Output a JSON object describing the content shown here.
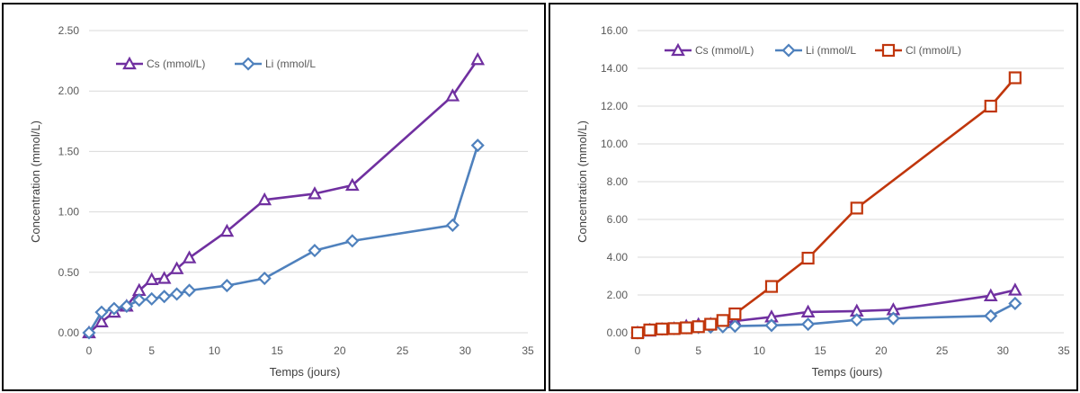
{
  "chart_data": [
    {
      "type": "line",
      "title": "",
      "xlabel": "Temps (jours)",
      "ylabel": "Concentration (mmol/L)",
      "xlim": [
        0,
        35
      ],
      "ylim": [
        0,
        2.5
      ],
      "x_ticks": [
        0,
        5,
        10,
        15,
        20,
        25,
        30,
        35
      ],
      "x_tick_labels": [
        "0",
        "5",
        "10",
        "15",
        "20",
        "25",
        "30",
        "35"
      ],
      "y_ticks": [
        0,
        0.5,
        1,
        1.5,
        2,
        2.5
      ],
      "y_tick_labels": [
        "0.00",
        "0.50",
        "1.00",
        "1.50",
        "2.00",
        "2.50"
      ],
      "grid": "horizontal",
      "legend_position": "top-left",
      "series": [
        {
          "name": "Cs (mmol/L)",
          "color": "#7030a0",
          "marker": "triangle",
          "x": [
            0,
            1,
            2,
            3,
            4,
            5,
            6,
            7,
            8,
            11,
            14,
            18,
            21,
            29,
            31
          ],
          "y": [
            0.0,
            0.09,
            0.17,
            0.22,
            0.35,
            0.44,
            0.45,
            0.53,
            0.62,
            0.84,
            1.1,
            1.15,
            1.22,
            1.96,
            2.26
          ]
        },
        {
          "name": "Li (mmol/L",
          "color": "#4f81bd",
          "marker": "diamond",
          "x": [
            0,
            1,
            2,
            3,
            4,
            5,
            6,
            7,
            8,
            11,
            14,
            18,
            21,
            29,
            31
          ],
          "y": [
            0.0,
            0.17,
            0.2,
            0.22,
            0.27,
            0.28,
            0.3,
            0.32,
            0.35,
            0.39,
            0.45,
            0.68,
            0.76,
            0.89,
            1.55
          ]
        }
      ]
    },
    {
      "type": "line",
      "title": "",
      "xlabel": "Temps (jours)",
      "ylabel": "Concentration (mmol/L)",
      "xlim": [
        0,
        35
      ],
      "ylim": [
        0,
        16
      ],
      "x_ticks": [
        0,
        5,
        10,
        15,
        20,
        25,
        30,
        35
      ],
      "x_tick_labels": [
        "0",
        "5",
        "10",
        "15",
        "20",
        "25",
        "30",
        "35"
      ],
      "y_ticks": [
        0,
        2,
        4,
        6,
        8,
        10,
        12,
        14,
        16
      ],
      "y_tick_labels": [
        "0.00",
        "2.00",
        "4.00",
        "6.00",
        "8.00",
        "10.00",
        "12.00",
        "14.00",
        "16.00"
      ],
      "grid": "horizontal",
      "legend_position": "top-left",
      "series": [
        {
          "name": "Cs (mmol/L)",
          "color": "#7030a0",
          "marker": "triangle",
          "x": [
            0,
            1,
            2,
            3,
            4,
            5,
            6,
            7,
            8,
            11,
            14,
            18,
            21,
            29,
            31
          ],
          "y": [
            0.0,
            0.09,
            0.17,
            0.22,
            0.35,
            0.44,
            0.45,
            0.53,
            0.62,
            0.84,
            1.1,
            1.15,
            1.22,
            1.96,
            2.26
          ]
        },
        {
          "name": "Li (mmol/L",
          "color": "#4f81bd",
          "marker": "diamond",
          "x": [
            0,
            1,
            2,
            3,
            4,
            5,
            6,
            7,
            8,
            11,
            14,
            18,
            21,
            29,
            31
          ],
          "y": [
            0.0,
            0.17,
            0.2,
            0.22,
            0.27,
            0.28,
            0.3,
            0.32,
            0.35,
            0.39,
            0.45,
            0.68,
            0.76,
            0.89,
            1.55
          ]
        },
        {
          "name": "Cl (mmol/L)",
          "color": "#c0360c",
          "marker": "square",
          "x": [
            0,
            1,
            2,
            3,
            4,
            5,
            6,
            7,
            8,
            11,
            14,
            18,
            21,
            29,
            31
          ],
          "y": [
            0.0,
            0.15,
            0.2,
            0.22,
            0.26,
            0.32,
            0.45,
            0.65,
            1.0,
            2.45,
            3.95,
            6.6,
            null,
            12.0,
            13.5
          ]
        }
      ]
    }
  ]
}
